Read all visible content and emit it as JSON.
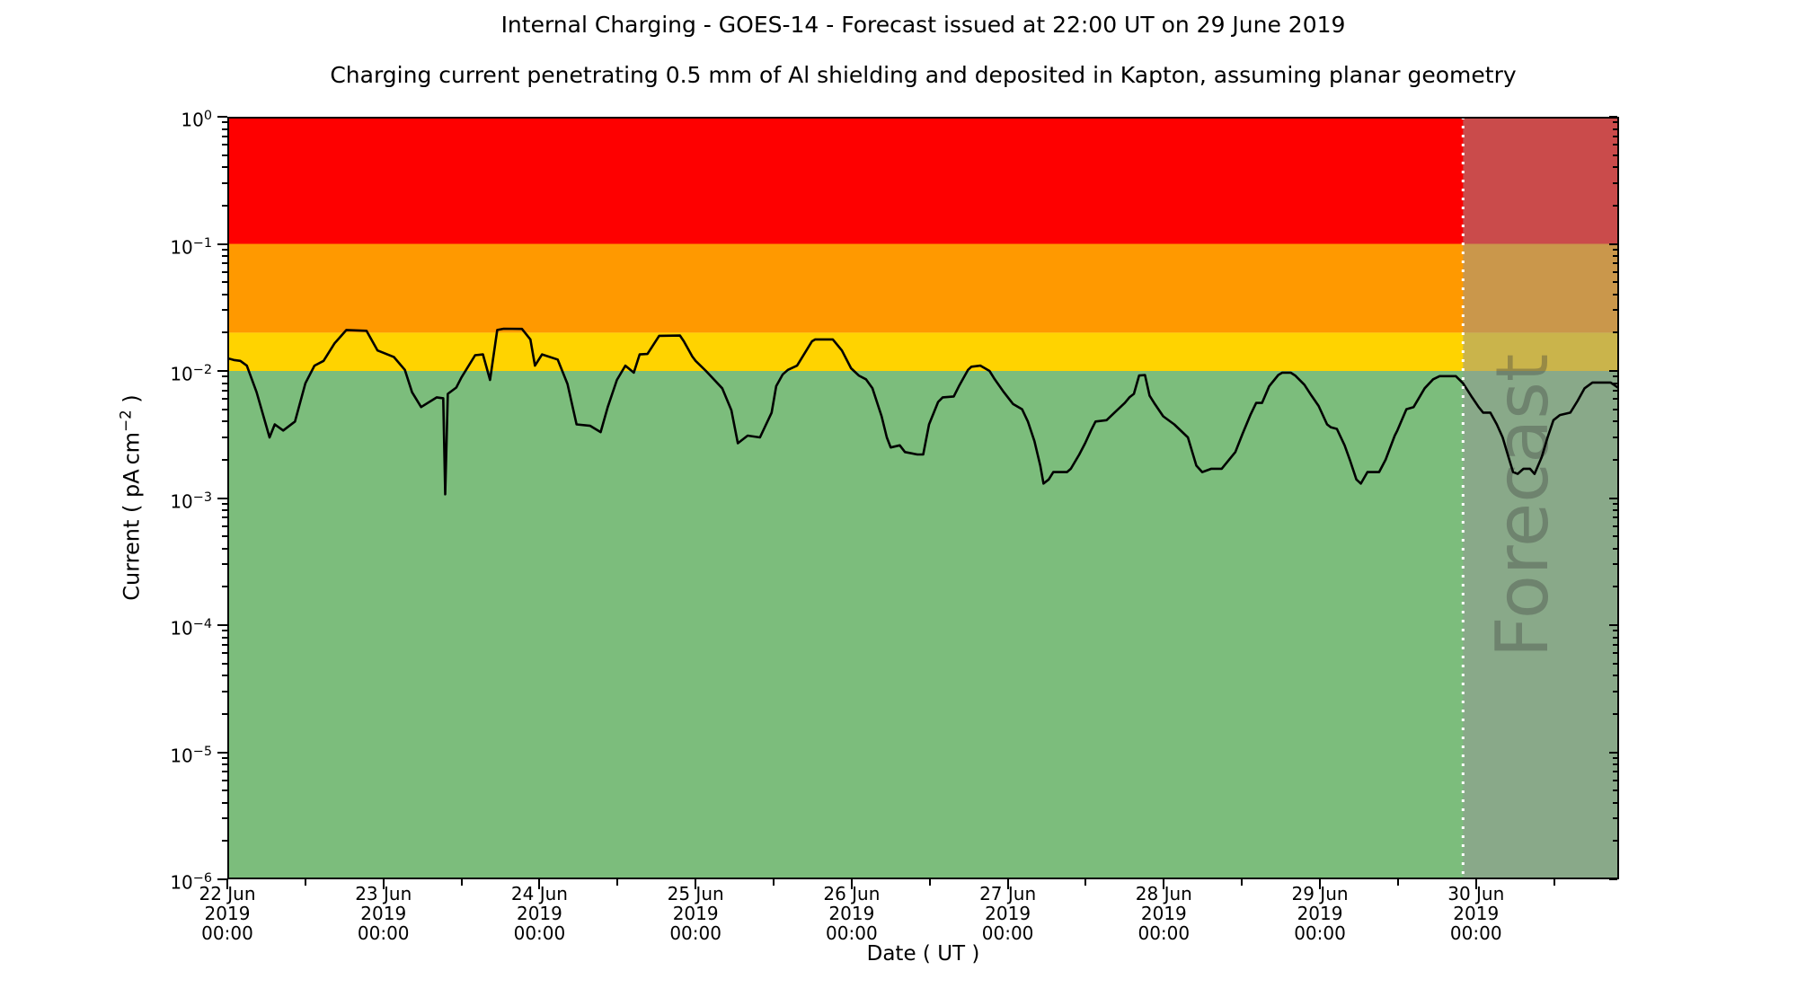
{
  "title": "Internal Charging - GOES-14 - Forecast issued at 22:00 UT on 29 June 2019",
  "subtitle": "Charging current penetrating 0.5 mm of Al shielding and deposited in Kapton, assuming planar geometry",
  "chart_data": {
    "type": "line",
    "title": "Internal Charging - GOES-14 - Forecast issued at 22:00 UT on 29 June 2019",
    "subtitle": "Charging current penetrating 0.5 mm of Al shielding and deposited in Kapton, assuming planar geometry",
    "xlabel": "Date ( UT )",
    "ylabel": "Current ( pA cm^-2 )",
    "ylabel_prefix": "Current ( pA cm",
    "ylabel_sup": "−2",
    "ylabel_suffix": " )",
    "x_unit": "hours since 22 Jun 2019 00:00 UT",
    "x_range": [
      0,
      214
    ],
    "y_scale": "log",
    "y_log_range": [
      -6,
      0
    ],
    "y_unit": "pA cm^-2",
    "grid": false,
    "legend": "none",
    "y_ticks_exponents": [
      0,
      -1,
      -2,
      -3,
      -4,
      -5,
      -6
    ],
    "x_ticks": [
      {
        "hour": 0,
        "lines": [
          "22 Jun",
          "2019",
          "00:00"
        ]
      },
      {
        "hour": 24,
        "lines": [
          "23 Jun",
          "2019",
          "00:00"
        ]
      },
      {
        "hour": 48,
        "lines": [
          "24 Jun",
          "2019",
          "00:00"
        ]
      },
      {
        "hour": 72,
        "lines": [
          "25 Jun",
          "2019",
          "00:00"
        ]
      },
      {
        "hour": 96,
        "lines": [
          "26 Jun",
          "2019",
          "00:00"
        ]
      },
      {
        "hour": 120,
        "lines": [
          "27 Jun",
          "2019",
          "00:00"
        ]
      },
      {
        "hour": 144,
        "lines": [
          "28 Jun",
          "2019",
          "00:00"
        ]
      },
      {
        "hour": 168,
        "lines": [
          "29 Jun",
          "2019",
          "00:00"
        ]
      },
      {
        "hour": 192,
        "lines": [
          "30 Jun",
          "2019",
          "00:00"
        ]
      }
    ],
    "bands": [
      {
        "name": "red-alert",
        "color": "#fe0000",
        "from": 0.1,
        "to": 1.0
      },
      {
        "name": "orange-alert",
        "color": "#ff9900",
        "from": 0.02,
        "to": 0.1
      },
      {
        "name": "amber-alert",
        "color": "#ffd300",
        "from": 0.01,
        "to": 0.02
      },
      {
        "name": "green-quiet",
        "color": "#7cbd7c",
        "from": 1e-06,
        "to": 0.01
      }
    ],
    "forecast": {
      "label": "Forecast",
      "start_hour": 190,
      "end_hour": 214,
      "start_time": "29 Jun 2019 22:00 UT",
      "overlay_color": "rgba(150,150,150,0.5)",
      "divider_style": "white dotted vertical line",
      "watermark_color": "rgba(60,60,60,0.35)"
    },
    "series": [
      {
        "name": "internal charging current",
        "color": "#000000",
        "points": [
          [
            0,
            0.0126
          ],
          [
            1,
            0.0122
          ],
          [
            2,
            0.012
          ],
          [
            3,
            0.011
          ],
          [
            4.5,
            0.0068
          ],
          [
            6.5,
            0.003
          ],
          [
            7.3,
            0.0038
          ],
          [
            8.6,
            0.0034
          ],
          [
            10.4,
            0.004
          ],
          [
            12,
            0.008
          ],
          [
            13.4,
            0.011
          ],
          [
            14.8,
            0.012
          ],
          [
            16.5,
            0.0165
          ],
          [
            18.3,
            0.021
          ],
          [
            21.4,
            0.0207
          ],
          [
            23.1,
            0.0145
          ],
          [
            25.6,
            0.0129
          ],
          [
            27.3,
            0.0102
          ],
          [
            28.4,
            0.0068
          ],
          [
            29.8,
            0.0052
          ],
          [
            32.2,
            0.0062
          ],
          [
            33.2,
            0.0061
          ],
          [
            33.5,
            0.00107
          ],
          [
            33.9,
            0.0066
          ],
          [
            35.2,
            0.0074
          ],
          [
            36,
            0.0089
          ],
          [
            38.1,
            0.0133
          ],
          [
            39.3,
            0.0135
          ],
          [
            40.4,
            0.0085
          ],
          [
            41.5,
            0.021
          ],
          [
            42.5,
            0.0215
          ],
          [
            45.3,
            0.0214
          ],
          [
            46.6,
            0.0177
          ],
          [
            47.3,
            0.011
          ],
          [
            48.4,
            0.0135
          ],
          [
            50.8,
            0.0123
          ],
          [
            52.3,
            0.0079
          ],
          [
            53.7,
            0.0038
          ],
          [
            55.8,
            0.0037
          ],
          [
            57.4,
            0.0033
          ],
          [
            58.5,
            0.0052
          ],
          [
            59.9,
            0.0085
          ],
          [
            61.2,
            0.011
          ],
          [
            62.5,
            0.0097
          ],
          [
            63.4,
            0.0135
          ],
          [
            64.6,
            0.0136
          ],
          [
            66.4,
            0.0189
          ],
          [
            69.6,
            0.019
          ],
          [
            70.2,
            0.0171
          ],
          [
            71.5,
            0.013
          ],
          [
            72,
            0.012
          ],
          [
            73.6,
            0.01
          ],
          [
            76.1,
            0.0073
          ],
          [
            77.5,
            0.0049
          ],
          [
            78.5,
            0.0027
          ],
          [
            80,
            0.0031
          ],
          [
            81.9,
            0.003
          ],
          [
            83.7,
            0.0047
          ],
          [
            84.4,
            0.0076
          ],
          [
            85.4,
            0.0094
          ],
          [
            86.2,
            0.0102
          ],
          [
            87.6,
            0.011
          ],
          [
            89.9,
            0.0171
          ],
          [
            90.4,
            0.0177
          ],
          [
            93.1,
            0.0177
          ],
          [
            94.5,
            0.0145
          ],
          [
            95.9,
            0.0105
          ],
          [
            97.1,
            0.0092
          ],
          [
            98.2,
            0.0086
          ],
          [
            99.2,
            0.0073
          ],
          [
            100.6,
            0.0044
          ],
          [
            101.4,
            0.003
          ],
          [
            102,
            0.0025
          ],
          [
            103.4,
            0.0026
          ],
          [
            104.2,
            0.0023
          ],
          [
            106.1,
            0.0022
          ],
          [
            107,
            0.0022
          ],
          [
            107.9,
            0.0038
          ],
          [
            109.3,
            0.0057
          ],
          [
            110,
            0.0062
          ],
          [
            111.7,
            0.0063
          ],
          [
            112.5,
            0.0076
          ],
          [
            113.9,
            0.0102
          ],
          [
            114.4,
            0.0108
          ],
          [
            115.8,
            0.011
          ],
          [
            117.2,
            0.01
          ],
          [
            118,
            0.0086
          ],
          [
            119.4,
            0.0068
          ],
          [
            120.8,
            0.0055
          ],
          [
            122.2,
            0.005
          ],
          [
            123.1,
            0.004
          ],
          [
            124.1,
            0.0028
          ],
          [
            125,
            0.0018
          ],
          [
            125.5,
            0.0013
          ],
          [
            126.3,
            0.0014
          ],
          [
            127,
            0.0016
          ],
          [
            129.1,
            0.0016
          ],
          [
            129.7,
            0.0017
          ],
          [
            131,
            0.0022
          ],
          [
            131.9,
            0.0027
          ],
          [
            132.8,
            0.0034
          ],
          [
            133.5,
            0.004
          ],
          [
            135.2,
            0.0041
          ],
          [
            136.6,
            0.0048
          ],
          [
            138,
            0.0056
          ],
          [
            138.7,
            0.0062
          ],
          [
            139.4,
            0.0066
          ],
          [
            140.2,
            0.0092
          ],
          [
            141.1,
            0.0093
          ],
          [
            141.8,
            0.0064
          ],
          [
            142.5,
            0.0056
          ],
          [
            143.9,
            0.0044
          ],
          [
            145.6,
            0.0038
          ],
          [
            147.7,
            0.003
          ],
          [
            149,
            0.0018
          ],
          [
            149.9,
            0.0016
          ],
          [
            151.3,
            0.0017
          ],
          [
            152.9,
            0.0017
          ],
          [
            155,
            0.0023
          ],
          [
            156.1,
            0.0032
          ],
          [
            157.3,
            0.0045
          ],
          [
            158.2,
            0.0056
          ],
          [
            159.1,
            0.0056
          ],
          [
            160.2,
            0.0076
          ],
          [
            161.6,
            0.0093
          ],
          [
            162.2,
            0.0097
          ],
          [
            163.5,
            0.0097
          ],
          [
            164.2,
            0.0092
          ],
          [
            165.6,
            0.0078
          ],
          [
            166.7,
            0.0064
          ],
          [
            167.8,
            0.0053
          ],
          [
            169.1,
            0.0038
          ],
          [
            169.7,
            0.0036
          ],
          [
            170.6,
            0.0035
          ],
          [
            171.8,
            0.0026
          ],
          [
            172.6,
            0.002
          ],
          [
            173.6,
            0.0014
          ],
          [
            174.3,
            0.0013
          ],
          [
            175.3,
            0.0016
          ],
          [
            176.1,
            0.0016
          ],
          [
            177.1,
            0.0016
          ],
          [
            178.1,
            0.002
          ],
          [
            179.5,
            0.0031
          ],
          [
            179.9,
            0.0034
          ],
          [
            181.3,
            0.005
          ],
          [
            182.4,
            0.0052
          ],
          [
            184.1,
            0.0073
          ],
          [
            185.4,
            0.0086
          ],
          [
            186.4,
            0.0091
          ],
          [
            188.9,
            0.0091
          ],
          [
            190,
            0.008
          ],
          [
            191.4,
            0.0062
          ],
          [
            192.4,
            0.0052
          ],
          [
            193.1,
            0.0047
          ],
          [
            194.2,
            0.0047
          ],
          [
            195.2,
            0.0038
          ],
          [
            196.1,
            0.003
          ],
          [
            197,
            0.0021
          ],
          [
            197.7,
            0.0016
          ],
          [
            198.4,
            0.00155
          ],
          [
            199.3,
            0.0017
          ],
          [
            200.3,
            0.0017
          ],
          [
            201,
            0.00155
          ],
          [
            202.1,
            0.0021
          ],
          [
            203,
            0.003
          ],
          [
            203.9,
            0.0041
          ],
          [
            204.9,
            0.0045
          ],
          [
            206.5,
            0.0047
          ],
          [
            207.6,
            0.0058
          ],
          [
            208.7,
            0.0073
          ],
          [
            209.9,
            0.0081
          ],
          [
            212.7,
            0.0081
          ],
          [
            213.5,
            0.0076
          ],
          [
            213.8,
            0.0074
          ]
        ]
      }
    ]
  }
}
